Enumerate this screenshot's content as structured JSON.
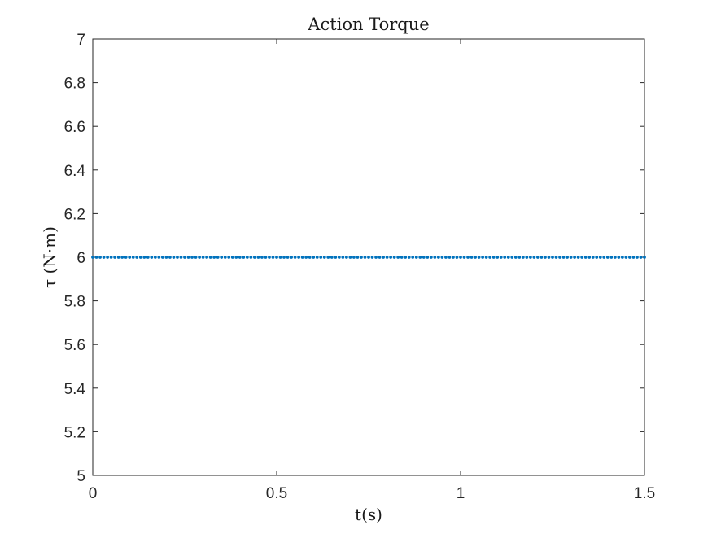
{
  "chart_data": {
    "type": "scatter",
    "title": "Action Torque",
    "xlabel": "t(s)",
    "ylabel": "τ (N·m)",
    "xlim": [
      0,
      1.5
    ],
    "ylim": [
      5,
      7
    ],
    "xticks": [
      0,
      0.5,
      1,
      1.5
    ],
    "xtick_labels": [
      "0",
      "0.5",
      "1",
      "1.5"
    ],
    "yticks": [
      5,
      5.2,
      5.4,
      5.6,
      5.8,
      6,
      6.2,
      6.4,
      6.6,
      6.8,
      7
    ],
    "ytick_labels": [
      "5",
      "5.2",
      "5.4",
      "5.6",
      "5.8",
      "6",
      "6.2",
      "6.4",
      "6.6",
      "6.8",
      "7"
    ],
    "grid": false,
    "series": [
      {
        "color": "#0072bd",
        "marker": "dot",
        "x": [
          0,
          0.01,
          0.02,
          0.03,
          0.04,
          0.05,
          0.06,
          0.07,
          0.08,
          0.09,
          0.1,
          0.11,
          0.12,
          0.13,
          0.14,
          0.15,
          0.16,
          0.17,
          0.18,
          0.19,
          0.2,
          0.21,
          0.22,
          0.23,
          0.24,
          0.25,
          0.26,
          0.27,
          0.28,
          0.29,
          0.3,
          0.31,
          0.32,
          0.33,
          0.34,
          0.35,
          0.36,
          0.37,
          0.38,
          0.39,
          0.4,
          0.41,
          0.42,
          0.43,
          0.44,
          0.45,
          0.46,
          0.47,
          0.48,
          0.49,
          0.5,
          0.51,
          0.52,
          0.53,
          0.54,
          0.55,
          0.56,
          0.57,
          0.58,
          0.59,
          0.6,
          0.61,
          0.62,
          0.63,
          0.64,
          0.65,
          0.66,
          0.67,
          0.68,
          0.69,
          0.7,
          0.71,
          0.72,
          0.73,
          0.74,
          0.75,
          0.76,
          0.77,
          0.78,
          0.79,
          0.8,
          0.81,
          0.82,
          0.83,
          0.84,
          0.85,
          0.86,
          0.87,
          0.88,
          0.89,
          0.9,
          0.91,
          0.92,
          0.93,
          0.94,
          0.95,
          0.96,
          0.97,
          0.98,
          0.99,
          1.0,
          1.01,
          1.02,
          1.03,
          1.04,
          1.05,
          1.06,
          1.07,
          1.08,
          1.09,
          1.1,
          1.11,
          1.12,
          1.13,
          1.14,
          1.15,
          1.16,
          1.17,
          1.18,
          1.19,
          1.2,
          1.21,
          1.22,
          1.23,
          1.24,
          1.25,
          1.26,
          1.27,
          1.28,
          1.29,
          1.3,
          1.31,
          1.32,
          1.33,
          1.34,
          1.35,
          1.36,
          1.37,
          1.38,
          1.39,
          1.4,
          1.41,
          1.42,
          1.43,
          1.44,
          1.45,
          1.46,
          1.47,
          1.48,
          1.49,
          1.5
        ],
        "y": [
          6,
          6,
          6,
          6,
          6,
          6,
          6,
          6,
          6,
          6,
          6,
          6,
          6,
          6,
          6,
          6,
          6,
          6,
          6,
          6,
          6,
          6,
          6,
          6,
          6,
          6,
          6,
          6,
          6,
          6,
          6,
          6,
          6,
          6,
          6,
          6,
          6,
          6,
          6,
          6,
          6,
          6,
          6,
          6,
          6,
          6,
          6,
          6,
          6,
          6,
          6,
          6,
          6,
          6,
          6,
          6,
          6,
          6,
          6,
          6,
          6,
          6,
          6,
          6,
          6,
          6,
          6,
          6,
          6,
          6,
          6,
          6,
          6,
          6,
          6,
          6,
          6,
          6,
          6,
          6,
          6,
          6,
          6,
          6,
          6,
          6,
          6,
          6,
          6,
          6,
          6,
          6,
          6,
          6,
          6,
          6,
          6,
          6,
          6,
          6,
          6,
          6,
          6,
          6,
          6,
          6,
          6,
          6,
          6,
          6,
          6,
          6,
          6,
          6,
          6,
          6,
          6,
          6,
          6,
          6,
          6,
          6,
          6,
          6,
          6,
          6,
          6,
          6,
          6,
          6,
          6,
          6,
          6,
          6,
          6,
          6,
          6,
          6,
          6,
          6,
          6,
          6,
          6,
          6,
          6,
          6,
          6,
          6,
          6,
          6,
          6
        ]
      }
    ]
  }
}
